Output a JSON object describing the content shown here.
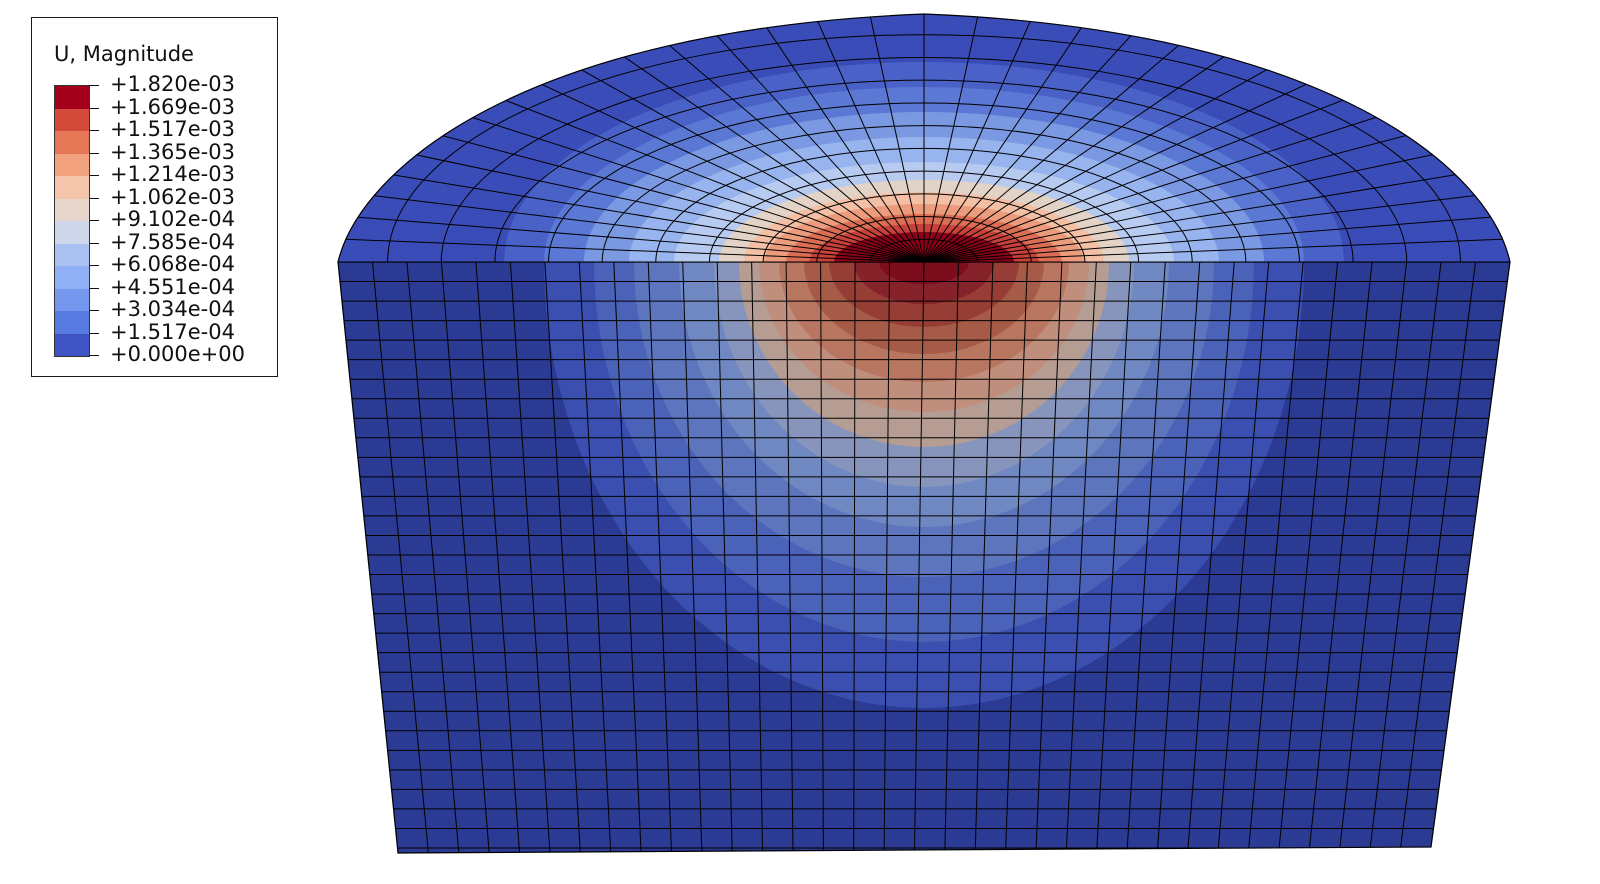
{
  "legend": {
    "title": "U, Magnitude",
    "labels": [
      "+1.820e-03",
      "+1.669e-03",
      "+1.517e-03",
      "+1.365e-03",
      "+1.214e-03",
      "+1.062e-03",
      "+9.102e-04",
      "+7.585e-04",
      "+6.068e-04",
      "+4.551e-04",
      "+3.034e-04",
      "+1.517e-04",
      "+0.000e+00"
    ],
    "colors": [
      "#a5001b",
      "#d34a3a",
      "#e67858",
      "#f2a27f",
      "#f5c5ab",
      "#e6d6cb",
      "#cfd8ea",
      "#a9c2f2",
      "#8fb0f4",
      "#7598ee",
      "#577be0",
      "#3f53c4"
    ]
  },
  "colors": {
    "base": "#2a3a8f",
    "top_outer": "#3a4cb8",
    "mesh_line": "#000000",
    "hot_core": "#800015"
  }
}
